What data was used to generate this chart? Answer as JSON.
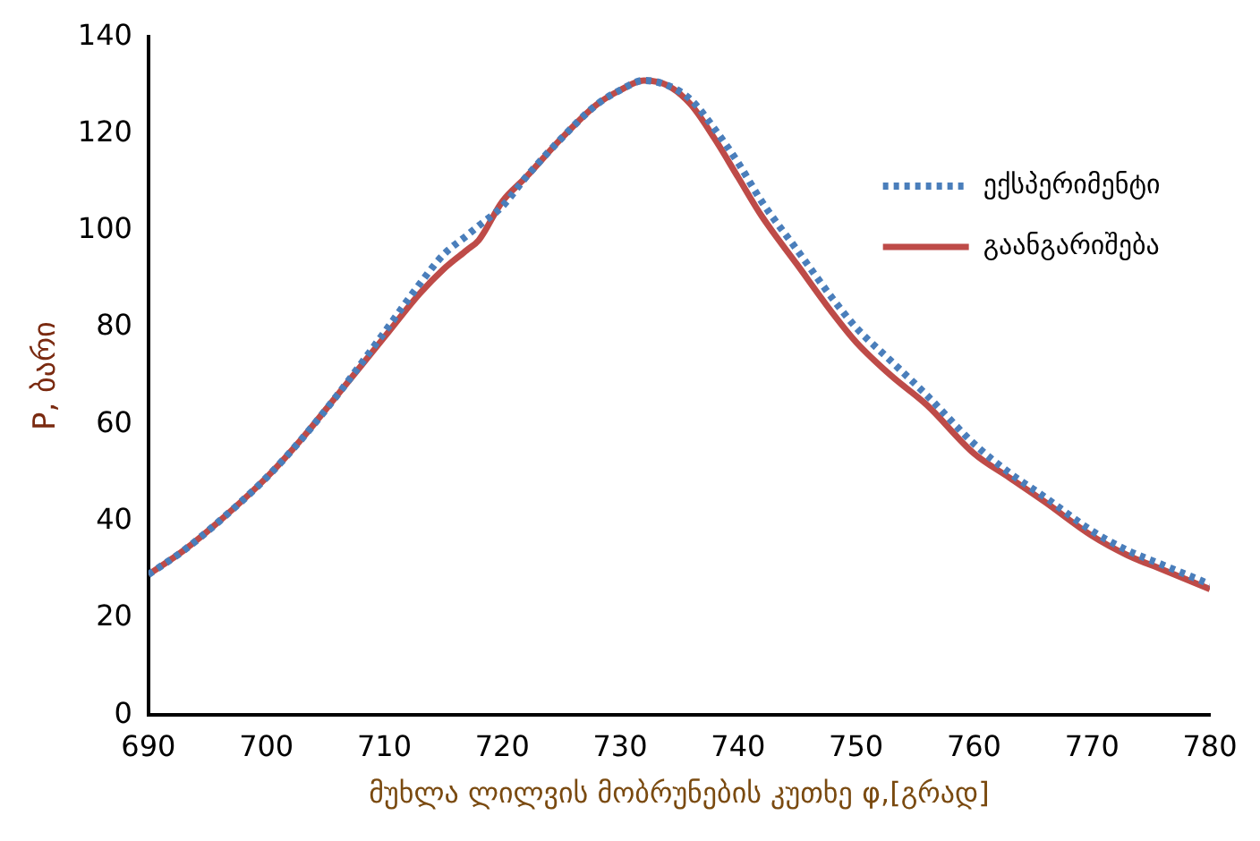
{
  "chart_data": {
    "type": "line",
    "xlabel": "მუხლა ლილვის მობრუნების კუთხე φ,[გრად]",
    "ylabel": "P, ბარი",
    "xlim": [
      690,
      780
    ],
    "xticks": [
      690,
      700,
      710,
      720,
      730,
      740,
      750,
      760,
      770,
      780
    ],
    "ylim": [
      0,
      140
    ],
    "yticks": [
      0,
      20,
      40,
      60,
      80,
      100,
      120,
      140
    ],
    "grid": false,
    "legend": "top right",
    "marker": "none",
    "series": [
      {
        "name": "ექსპერიმენტი",
        "color": "#4a7ebb",
        "line_style": "dotted",
        "x": [
          690,
          693,
          696,
          700,
          703,
          706,
          710,
          713,
          715,
          717,
          718,
          720,
          722,
          725,
          728,
          730,
          732,
          734,
          736,
          738,
          740,
          742,
          745,
          748,
          750,
          753,
          756,
          760,
          763,
          766,
          770,
          773,
          776,
          780
        ],
        "values": [
          29,
          34,
          40,
          49,
          57,
          66,
          79,
          89,
          95,
          99,
          101,
          105,
          111,
          119,
          126,
          129,
          131,
          130,
          127,
          121,
          114,
          106,
          96,
          86,
          80,
          73,
          66,
          56,
          50,
          45,
          38,
          34,
          31,
          27
        ]
      },
      {
        "name": "გაანგარიშება",
        "color": "#be4b48",
        "line_style": "solid",
        "x": [
          690,
          693,
          696,
          700,
          703,
          706,
          710,
          713,
          715,
          717,
          718,
          720,
          722,
          725,
          728,
          730,
          732,
          734,
          736,
          738,
          740,
          742,
          745,
          748,
          750,
          753,
          756,
          760,
          763,
          766,
          770,
          773,
          776,
          780
        ],
        "values": [
          29,
          34,
          40,
          49,
          57,
          66,
          78,
          87,
          92,
          96,
          98,
          106,
          111,
          119,
          126,
          129,
          131,
          130,
          126,
          119,
          111,
          103,
          93,
          83,
          77,
          70,
          64,
          54,
          49,
          44,
          37,
          33,
          30,
          26
        ]
      }
    ]
  }
}
